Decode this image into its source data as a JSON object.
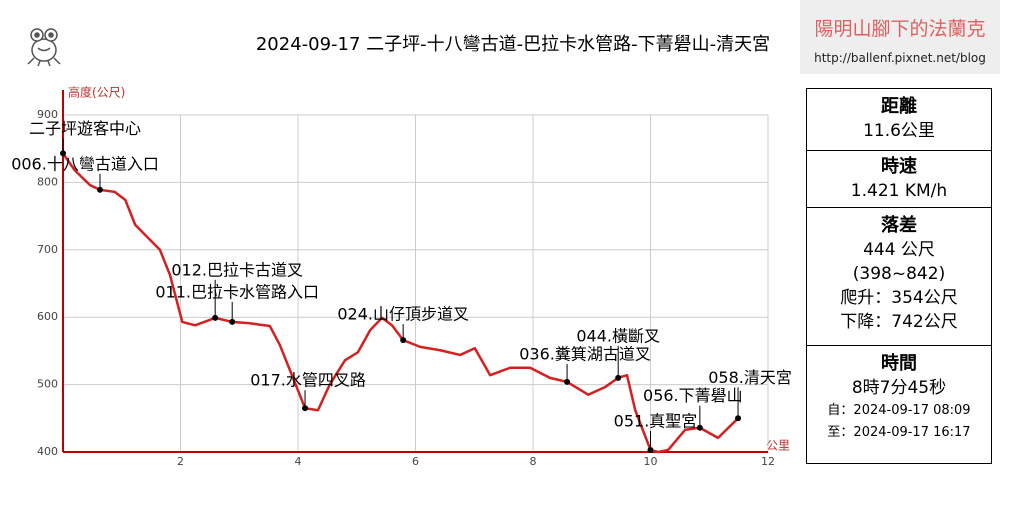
{
  "header": {
    "blog_name": "陽明山腳下的法蘭克",
    "blog_url": "http://ballenf.pixnet.net/blog"
  },
  "chart_data": {
    "type": "line",
    "title": "2024-09-17 二子坪-十八彎古道-巴拉卡水管路-下菁礐山-清天宮",
    "y_label": "高度(公尺)",
    "x_label": "公里",
    "color": "#d42020",
    "x": [
      0,
      0.2,
      0.46,
      0.63,
      0.88,
      1.06,
      1.23,
      1.4,
      1.65,
      1.82,
      2.03,
      2.25,
      2.59,
      2.88,
      3.18,
      3.52,
      3.69,
      3.86,
      4.12,
      4.34,
      4.54,
      4.8,
      5.02,
      5.23,
      5.43,
      5.6,
      5.79,
      6.08,
      6.42,
      6.76,
      7.01,
      7.27,
      7.61,
      7.95,
      8.29,
      8.58,
      8.94,
      9.22,
      9.45,
      9.6,
      9.74,
      10.0,
      10.13,
      10.3,
      10.59,
      10.84,
      11.15,
      11.49
    ],
    "values": [
      843,
      818,
      796,
      789,
      786,
      774,
      737,
      722,
      700,
      663,
      593,
      588,
      599,
      593,
      591,
      587,
      559,
      522,
      465,
      462,
      500,
      536,
      548,
      581,
      599,
      588,
      566,
      556,
      551,
      544,
      554,
      514,
      525,
      525,
      510,
      504,
      485,
      496,
      510,
      514,
      462,
      403,
      400,
      403,
      433,
      436,
      421,
      450
    ],
    "xlim": [
      0,
      12
    ],
    "ylim": [
      400,
      900
    ],
    "xticks": [
      2,
      4,
      6,
      8,
      10,
      12
    ],
    "yticks": [
      400,
      500,
      600,
      700,
      800,
      900
    ],
    "grid": true,
    "annotations": [
      {
        "text": "二子坪遊客中心",
        "x": 0,
        "y": 843
      },
      {
        "text": "006.十八彎古道入口",
        "x": 0.63,
        "y": 789
      },
      {
        "text": "012.巴拉卡古道叉",
        "x": 2.59,
        "y": 599
      },
      {
        "text": "011.巴拉卡水管路入口",
        "x": 2.88,
        "y": 593
      },
      {
        "text": "017.水管四叉路",
        "x": 4.12,
        "y": 465
      },
      {
        "text": "024.山仔頂步道叉",
        "x": 5.79,
        "y": 566
      },
      {
        "text": "036.糞箕湖古道叉",
        "x": 8.58,
        "y": 504
      },
      {
        "text": "044.橫斷叉",
        "x": 9.45,
        "y": 510
      },
      {
        "text": "051.真聖宮",
        "x": 10.0,
        "y": 403
      },
      {
        "text": "056.下菁礐山",
        "x": 10.84,
        "y": 436
      },
      {
        "text": "058.清天宮",
        "x": 11.49,
        "y": 450
      }
    ]
  },
  "stats": {
    "distance": {
      "heading": "距離",
      "value": "11.6公里"
    },
    "speed": {
      "heading": "時速",
      "value": "1.421 KM/h"
    },
    "elevation": {
      "heading": "落差",
      "value": "444 公尺",
      "range": "(398~842)",
      "ascent": "爬升：354公尺",
      "descent": "下降：742公尺"
    },
    "time": {
      "heading": "時間",
      "value": "8時7分45秒",
      "start": "自：2024-09-17 08:09",
      "end": "至：2024-09-17 16:17"
    }
  }
}
